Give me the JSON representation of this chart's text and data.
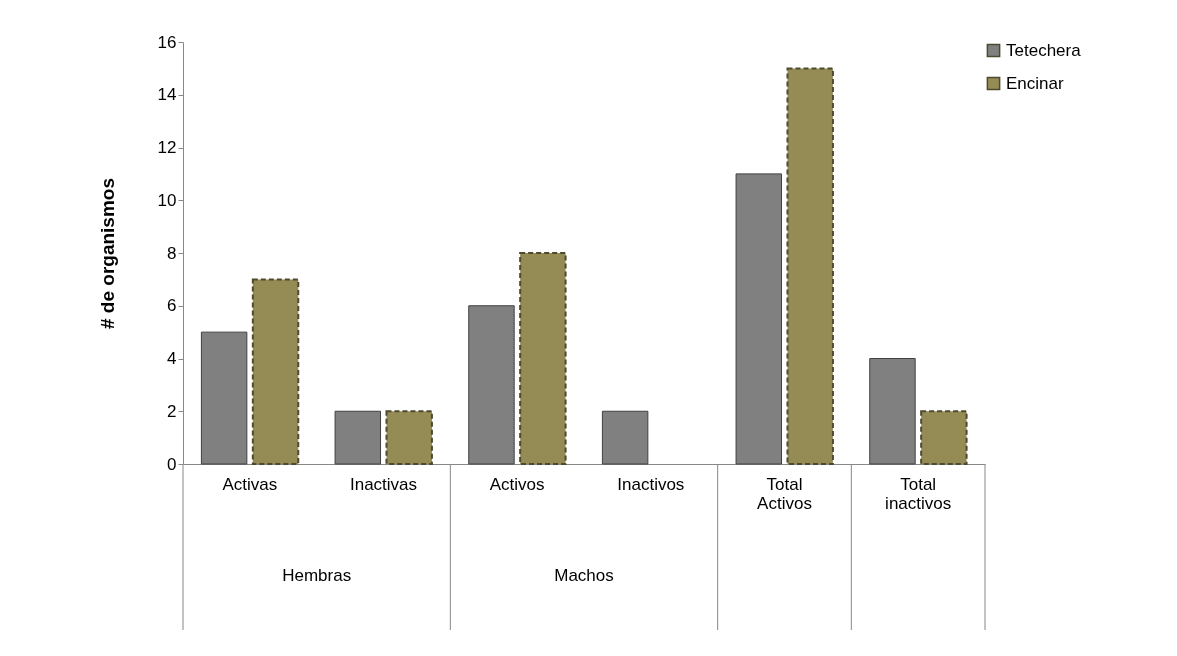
{
  "chart_data": {
    "type": "bar",
    "ylabel": "# de organismos",
    "categories": [
      "Activas",
      "Inactivas",
      "Activos",
      "Inactivos",
      "Total Activos",
      "Total inactivos"
    ],
    "series": [
      {
        "name": "Tetechera",
        "color": "#808080",
        "values": [
          5,
          2,
          6,
          2,
          11,
          4
        ]
      },
      {
        "name": "Encinar",
        "color": "#958b55",
        "line_style": "dashed",
        "values": [
          7,
          2,
          8,
          null,
          15,
          2
        ]
      }
    ],
    "ylim": [
      0,
      16
    ],
    "yticks": [
      0,
      2,
      4,
      6,
      8,
      10,
      12,
      14,
      16
    ],
    "annotations": [
      "Hembras",
      "Machos"
    ],
    "legend": "top right",
    "grid": false
  }
}
